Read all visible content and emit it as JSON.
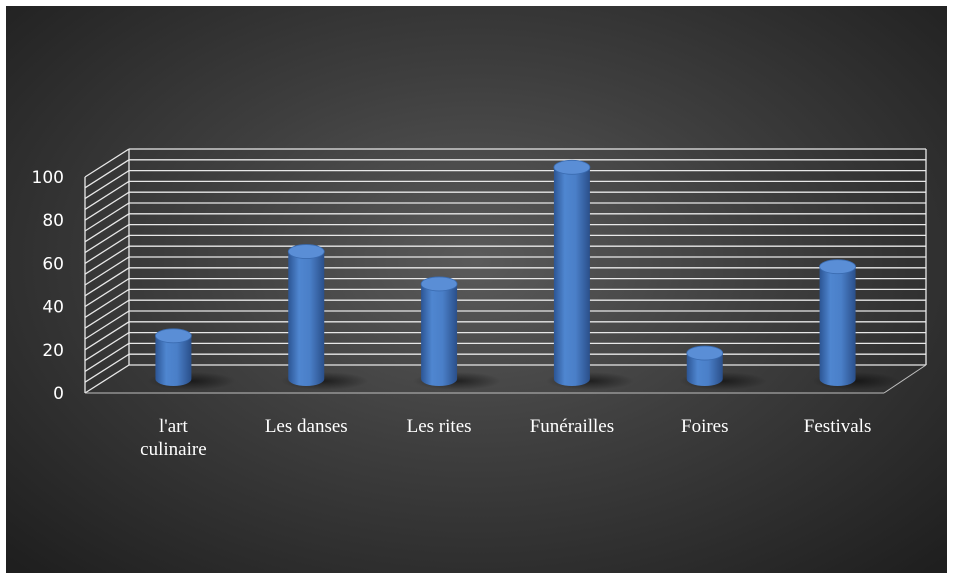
{
  "chart_data": {
    "type": "bar",
    "categories": [
      [
        "l'art",
        "culinaire"
      ],
      [
        "Les danses"
      ],
      [
        "Les rites"
      ],
      [
        "Funérailles"
      ],
      [
        "Foires"
      ],
      [
        "Festivals"
      ]
    ],
    "values": [
      20,
      59,
      44,
      98,
      12,
      52
    ],
    "ylim": [
      0,
      100
    ],
    "yticks": [
      0,
      20,
      40,
      60,
      80,
      100
    ],
    "title": "",
    "xlabel": "",
    "ylabel": "",
    "grid": true,
    "legend": "none",
    "colors": {
      "bar": "#4a7fc8",
      "grid": "#e8e8e8",
      "background": "#3a3a3a"
    }
  }
}
